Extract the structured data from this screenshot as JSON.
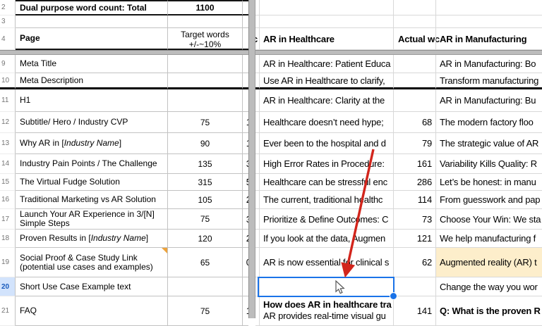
{
  "colors": {
    "selection_blue": "#1a73e8",
    "selected_gutter_bg": "#d2e3fc",
    "highlight_yellow": "#fdeecb",
    "note_orange": "#eda33c",
    "arrow_red": "#d2251c",
    "divider_gray": "#bcbcbc"
  },
  "top": {
    "row2": {
      "num": "2",
      "label": "Dual purpose word count: Total",
      "value": "1100"
    },
    "row3": {
      "num": "3"
    },
    "row4": {
      "num": "4",
      "label": "Page",
      "target_header_line1": "Target words",
      "target_header_line2": "+/-~10%",
      "truncated_header": "c",
      "healthcare_header": "AR in Healthcare",
      "actual_header": "Actual wc",
      "manufacturing_header": "AR in Manufacturing"
    }
  },
  "body": {
    "rows": [
      {
        "num": "9",
        "label": "Meta Title",
        "target": "",
        "digit": "",
        "healthcare": "AR in Healthcare: Patient Educa",
        "actual": "",
        "manufacturing": "AR in Manufacturing: Bo"
      },
      {
        "num": "10",
        "label": "Meta Description",
        "target": "",
        "digit": "",
        "healthcare": "Use AR in Healthcare to clarify,",
        "actual": "",
        "manufacturing": "Transform manufacturing",
        "thick_bottom": true
      },
      {
        "num": "11",
        "label": "H1",
        "target": "",
        "digit": "",
        "healthcare": "AR in Healthcare: Clarity at the",
        "actual": "",
        "manufacturing": "AR in Manufacturing: Bu"
      },
      {
        "num": "12",
        "label": "Subtitle/ Hero / Industry CVP",
        "target": "75",
        "digit": "1",
        "healthcare": "Healthcare doesn’t need hype;",
        "actual": "68",
        "manufacturing": "The modern factory floo"
      },
      {
        "num": "13",
        "label_parts": [
          {
            "text": "Why AR in [",
            "italic": false
          },
          {
            "text": "Industry Name",
            "italic": true
          },
          {
            "text": "]",
            "italic": false
          }
        ],
        "target": "90",
        "digit": "1",
        "healthcare": "Ever been to the hospital and d",
        "actual": "79",
        "manufacturing": "The strategic value of AR"
      },
      {
        "num": "14",
        "label": "Industry Pain Points / The Challenge",
        "target": "135",
        "digit": "3",
        "healthcare": "High Error Rates in Procedure:",
        "actual": "161",
        "manufacturing": "Variability Kills Quality: R"
      },
      {
        "num": "15",
        "label": "The Virtual Fudge Solution",
        "target": "315",
        "digit": "5",
        "healthcare": "Healthcare can be stressful enc",
        "actual": "286",
        "manufacturing": "Let’s be honest: in manu"
      },
      {
        "num": "16",
        "label": "Traditional Marketing vs AR Solution",
        "target": "105",
        "digit": "2",
        "healthcare": "The current, traditional healthc",
        "actual": "114",
        "manufacturing": "From guesswork and pap"
      },
      {
        "num": "17",
        "label": "Launch Your AR Experience in 3/[N] Simple Steps",
        "target": "75",
        "digit": "3",
        "healthcare": "Prioritize & Define Outcomes: C",
        "actual": "73",
        "manufacturing": "Choose Your Win: We sta"
      },
      {
        "num": "18",
        "label_parts": [
          {
            "text": "Proven Results in [",
            "italic": false
          },
          {
            "text": "Industry Name",
            "italic": true
          },
          {
            "text": "]",
            "italic": false
          }
        ],
        "target": "120",
        "digit": "2",
        "healthcare": "If you look at the data, Augmen",
        "actual": "121",
        "manufacturing": "We help manufacturing f"
      },
      {
        "num": "19",
        "label": "Social Proof & Case Study Link (potential use cases and examples)",
        "target": "65",
        "digit": "0",
        "healthcare": "AR is now essential for clinical s",
        "actual": "62",
        "manufacturing": "Augmented reality (AR) t",
        "note": true,
        "manufacturing_highlight": true
      },
      {
        "num": "20",
        "label": "Short Use Case Example text",
        "target": "",
        "digit": "",
        "healthcare": "",
        "actual": "",
        "manufacturing": "Change the way you wor",
        "selected": true
      },
      {
        "num": "21",
        "label": "FAQ",
        "target": "75",
        "digit": "1",
        "healthcare": "How does AR in healthcare tra",
        "healthcare_bold": true,
        "healthcare_line2": "AR provides real-time visual gu",
        "actual": "141",
        "manufacturing": "Q: What is the proven R",
        "manufacturing_bold": true
      }
    ]
  }
}
